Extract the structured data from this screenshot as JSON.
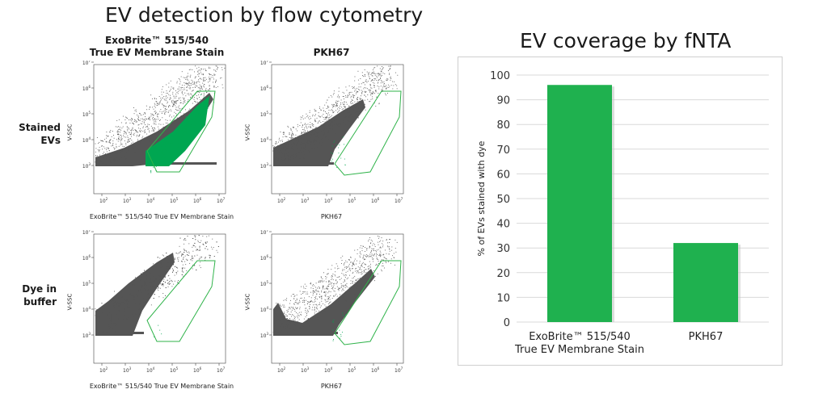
{
  "titles": {
    "flow": "EV detection by flow cytometry",
    "fnta": "EV coverage by fNTA"
  },
  "columns": {
    "exobrite_line1": "ExoBrite™ 515/540",
    "exobrite_line2": "True EV Membrane Stain",
    "pkh67": "PKH67"
  },
  "rows": {
    "stained": "Stained EVs",
    "dye_line1": "Dye in",
    "dye_line2": "buffer"
  },
  "axes": {
    "y_label": "V-SSC",
    "x_exobrite": "ExoBrite™ 515/540 True EV Membrane Stain",
    "x_pkh67": "PKH67",
    "y_ticks": [
      "10",
      "10",
      "10",
      "10",
      "10"
    ],
    "y_tick_exps": [
      "3",
      "4",
      "5",
      "6",
      "7"
    ],
    "x_ticks": [
      "10",
      "10",
      "10",
      "10",
      "10",
      "10"
    ],
    "x_tick_exps": [
      "2",
      "3",
      "4",
      "5",
      "6",
      "7"
    ]
  },
  "colors": {
    "green": "#00a651",
    "gate": "#2fb34a",
    "dots": "#555555",
    "bar": "#1fb14f"
  },
  "chart_data": {
    "type": "bar",
    "title": "EV coverage by fNTA",
    "categories_line1": [
      "ExoBrite™ 515/540",
      "PKH67"
    ],
    "categories_line2": [
      "True EV Membrane Stain",
      ""
    ],
    "values": [
      96,
      32
    ],
    "ylabel": "% of EVs stained with dye",
    "ylim": [
      0,
      100
    ],
    "yticks": [
      "0",
      "10",
      "20",
      "30",
      "40",
      "50",
      "60",
      "70",
      "80",
      "90",
      "100"
    ],
    "grid": true
  }
}
